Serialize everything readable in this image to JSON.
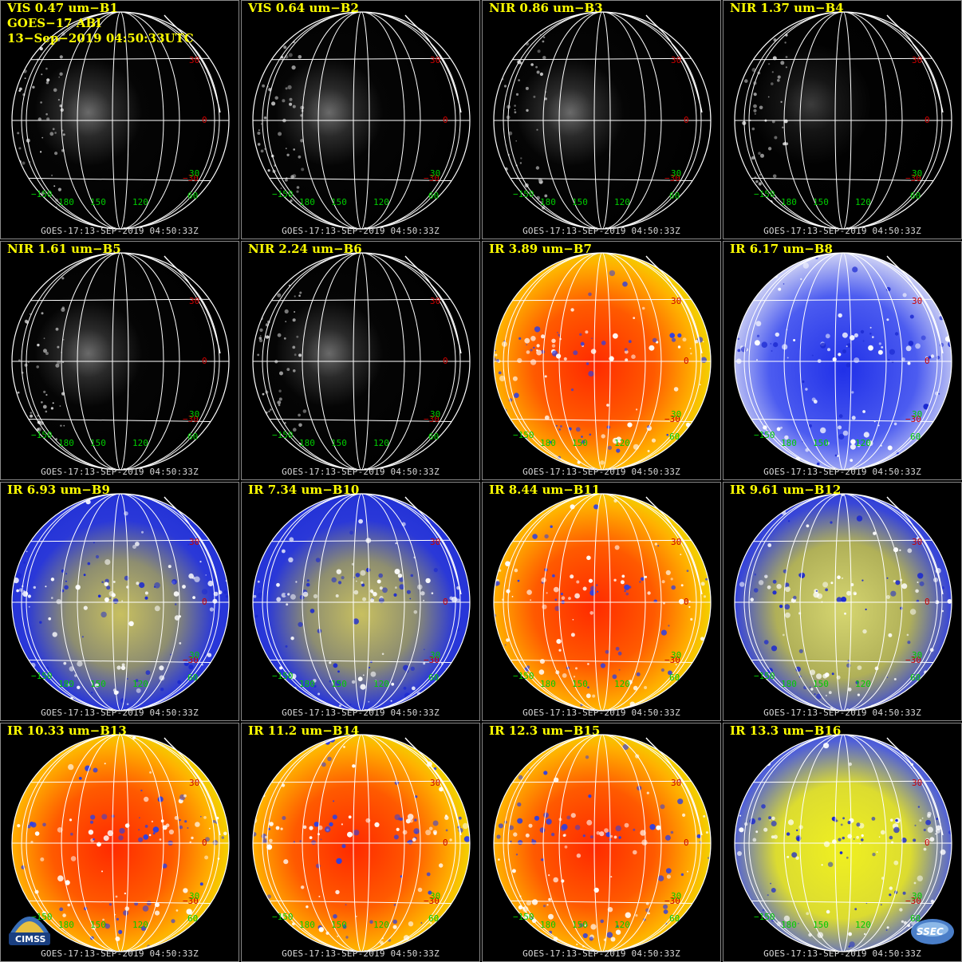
{
  "header": {
    "product_label": "GOES−17 ABI",
    "scan_time": "13−Sep−2019 04:50:33UTC"
  },
  "timestamp_footer": "GOES-17:13-SEP-2019 04:50:33Z",
  "lat_labels": [
    "30",
    "0",
    "−30"
  ],
  "lat_label_colors": [
    "#cc0000",
    "#cc0000",
    "#cc0000"
  ],
  "lon_labels": [
    "−150",
    "180",
    "150",
    "120",
    "60"
  ],
  "lon_label_color": "#00cc00",
  "right_lat_extra": "30",
  "logos": {
    "cimss": "CIMSS",
    "ssec": "SSEC"
  },
  "panels": [
    {
      "title": "VIS 0.47 um−B1",
      "style": "vis"
    },
    {
      "title": "VIS 0.64 um−B2",
      "style": "vis"
    },
    {
      "title": "NIR 0.86 um−B3",
      "style": "vis"
    },
    {
      "title": "NIR 1.37 um−B4",
      "style": "visdark"
    },
    {
      "title": "NIR 1.61 um−B5",
      "style": "vis"
    },
    {
      "title": "NIR 2.24 um−B6",
      "style": "vis"
    },
    {
      "title": "IR 3.89 um−B7",
      "style": "irwarm"
    },
    {
      "title": "IR 6.17 um−B8",
      "style": "wv"
    },
    {
      "title": "IR 6.93 um−B9",
      "style": "wvmid"
    },
    {
      "title": "IR 7.34 um−B10",
      "style": "wvmid"
    },
    {
      "title": "IR 8.44 um−B11",
      "style": "irwarm"
    },
    {
      "title": "IR 9.61 um−B12",
      "style": "ozone"
    },
    {
      "title": "IR 10.33 um−B13",
      "style": "irwarm"
    },
    {
      "title": "IR 11.2 um−B14",
      "style": "irwarm"
    },
    {
      "title": "IR 12.3 um−B15",
      "style": "irwarm"
    },
    {
      "title": "IR 13.3 um−B16",
      "style": "co2"
    }
  ]
}
